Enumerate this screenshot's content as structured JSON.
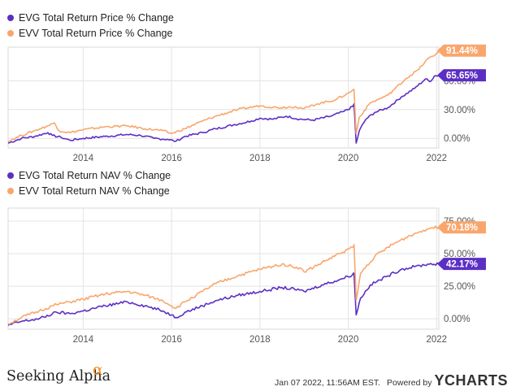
{
  "colors": {
    "evg": "#5b2fc4",
    "evv": "#f9a66c",
    "grid": "#e3e3e3",
    "border": "#d9d9d9"
  },
  "chart_data": [
    {
      "type": "line",
      "xlabel": "",
      "ylabel": "",
      "legend": "top-left",
      "grid": true,
      "x_ticks": [
        "2014",
        "2016",
        "2018",
        "2020",
        "2022"
      ],
      "y_ticks": [
        "0.00%",
        "30.00%",
        "60.00%"
      ],
      "ylim": [
        -10,
        95
      ],
      "xlim": [
        2012.3,
        2022.05
      ],
      "series": [
        {
          "name": "EVG Total Return Price % Change",
          "color": "#5b2fc4",
          "end_label": "65.65%",
          "points": [
            [
              2012.3,
              -5
            ],
            [
              2012.6,
              0
            ],
            [
              2012.9,
              2
            ],
            [
              2013.2,
              6
            ],
            [
              2013.3,
              3
            ],
            [
              2013.5,
              1
            ],
            [
              2013.7,
              -2
            ],
            [
              2014.0,
              0
            ],
            [
              2014.5,
              2
            ],
            [
              2015.0,
              4
            ],
            [
              2015.3,
              3
            ],
            [
              2015.6,
              0
            ],
            [
              2015.9,
              -1
            ],
            [
              2016.1,
              -3
            ],
            [
              2016.3,
              2
            ],
            [
              2016.7,
              6
            ],
            [
              2017.0,
              10
            ],
            [
              2017.4,
              14
            ],
            [
              2017.8,
              18
            ],
            [
              2018.0,
              21
            ],
            [
              2018.3,
              20
            ],
            [
              2018.6,
              23
            ],
            [
              2018.9,
              20
            ],
            [
              2019.2,
              19
            ],
            [
              2019.6,
              23
            ],
            [
              2019.9,
              28
            ],
            [
              2020.1,
              33
            ],
            [
              2020.13,
              36
            ],
            [
              2020.18,
              -5
            ],
            [
              2020.25,
              8
            ],
            [
              2020.4,
              20
            ],
            [
              2020.6,
              27
            ],
            [
              2020.9,
              32
            ],
            [
              2021.2,
              43
            ],
            [
              2021.5,
              52
            ],
            [
              2021.75,
              62
            ],
            [
              2021.85,
              59
            ],
            [
              2021.95,
              65
            ],
            [
              2022.05,
              65.65
            ]
          ]
        },
        {
          "name": "EVV Total Return Price % Change",
          "color": "#f9a66c",
          "end_label": "91.44%",
          "points": [
            [
              2012.3,
              -3
            ],
            [
              2012.6,
              3
            ],
            [
              2012.9,
              8
            ],
            [
              2013.2,
              13
            ],
            [
              2013.35,
              16
            ],
            [
              2013.45,
              8
            ],
            [
              2013.7,
              6
            ],
            [
              2014.0,
              9
            ],
            [
              2014.5,
              12
            ],
            [
              2015.0,
              13
            ],
            [
              2015.4,
              10
            ],
            [
              2015.8,
              8
            ],
            [
              2016.0,
              5
            ],
            [
              2016.3,
              10
            ],
            [
              2016.7,
              18
            ],
            [
              2017.0,
              23
            ],
            [
              2017.5,
              30
            ],
            [
              2018.0,
              34
            ],
            [
              2018.4,
              32
            ],
            [
              2018.8,
              33
            ],
            [
              2019.0,
              31
            ],
            [
              2019.3,
              36
            ],
            [
              2019.7,
              40
            ],
            [
              2020.0,
              47
            ],
            [
              2020.13,
              51
            ],
            [
              2020.18,
              5
            ],
            [
              2020.25,
              22
            ],
            [
              2020.5,
              37
            ],
            [
              2020.9,
              45
            ],
            [
              2021.3,
              62
            ],
            [
              2021.6,
              72
            ],
            [
              2021.8,
              83
            ],
            [
              2021.95,
              86
            ],
            [
              2022.05,
              91.44
            ]
          ]
        }
      ]
    },
    {
      "type": "line",
      "xlabel": "",
      "ylabel": "",
      "legend": "top-left",
      "grid": true,
      "x_ticks": [
        "2014",
        "2016",
        "2018",
        "2020",
        "2022"
      ],
      "y_ticks": [
        "0.00%",
        "25.00%",
        "50.00%",
        "75.00%"
      ],
      "ylim": [
        -8,
        85
      ],
      "xlim": [
        2012.3,
        2022.05
      ],
      "series": [
        {
          "name": "EVG Total Return NAV % Change",
          "color": "#5b2fc4",
          "end_label": "42.17%",
          "points": [
            [
              2012.3,
              -5
            ],
            [
              2012.6,
              -2
            ],
            [
              2013.0,
              0
            ],
            [
              2013.4,
              5
            ],
            [
              2013.7,
              4
            ],
            [
              2014.0,
              6
            ],
            [
              2014.5,
              10
            ],
            [
              2015.0,
              13
            ],
            [
              2015.4,
              10
            ],
            [
              2015.8,
              6
            ],
            [
              2016.0,
              3
            ],
            [
              2016.1,
              1
            ],
            [
              2016.3,
              5
            ],
            [
              2016.7,
              10
            ],
            [
              2017.0,
              14
            ],
            [
              2017.5,
              18
            ],
            [
              2018.0,
              21
            ],
            [
              2018.5,
              24
            ],
            [
              2018.9,
              22
            ],
            [
              2019.0,
              21
            ],
            [
              2019.4,
              26
            ],
            [
              2019.8,
              30
            ],
            [
              2020.1,
              34
            ],
            [
              2020.13,
              35
            ],
            [
              2020.18,
              3
            ],
            [
              2020.28,
              16
            ],
            [
              2020.5,
              26
            ],
            [
              2020.9,
              33
            ],
            [
              2021.2,
              38
            ],
            [
              2021.5,
              40
            ],
            [
              2021.8,
              42
            ],
            [
              2022.05,
              42.17
            ]
          ]
        },
        {
          "name": "EVV Total Return NAV % Change",
          "color": "#f9a66c",
          "end_label": "70.18%",
          "points": [
            [
              2012.3,
              -4
            ],
            [
              2012.6,
              1
            ],
            [
              2013.0,
              6
            ],
            [
              2013.4,
              11
            ],
            [
              2013.7,
              13
            ],
            [
              2014.0,
              15
            ],
            [
              2014.5,
              19
            ],
            [
              2015.0,
              21
            ],
            [
              2015.4,
              18
            ],
            [
              2015.8,
              14
            ],
            [
              2016.0,
              10
            ],
            [
              2016.1,
              8
            ],
            [
              2016.3,
              13
            ],
            [
              2016.7,
              21
            ],
            [
              2017.0,
              27
            ],
            [
              2017.5,
              33
            ],
            [
              2018.0,
              38
            ],
            [
              2018.5,
              42
            ],
            [
              2018.9,
              39
            ],
            [
              2019.0,
              36
            ],
            [
              2019.4,
              43
            ],
            [
              2019.8,
              50
            ],
            [
              2020.1,
              55
            ],
            [
              2020.13,
              57
            ],
            [
              2020.18,
              14
            ],
            [
              2020.28,
              35
            ],
            [
              2020.6,
              48
            ],
            [
              2021.0,
              57
            ],
            [
              2021.4,
              64
            ],
            [
              2021.7,
              68
            ],
            [
              2021.9,
              70
            ],
            [
              2022.05,
              70.18
            ]
          ]
        }
      ]
    }
  ],
  "footer": {
    "brand": "Seeking Alpha",
    "brand_mark": "α",
    "date": "Jan 07 2022, 11:56AM EST.",
    "powered_by": "Powered by",
    "ycharts": "YCHARTS"
  }
}
